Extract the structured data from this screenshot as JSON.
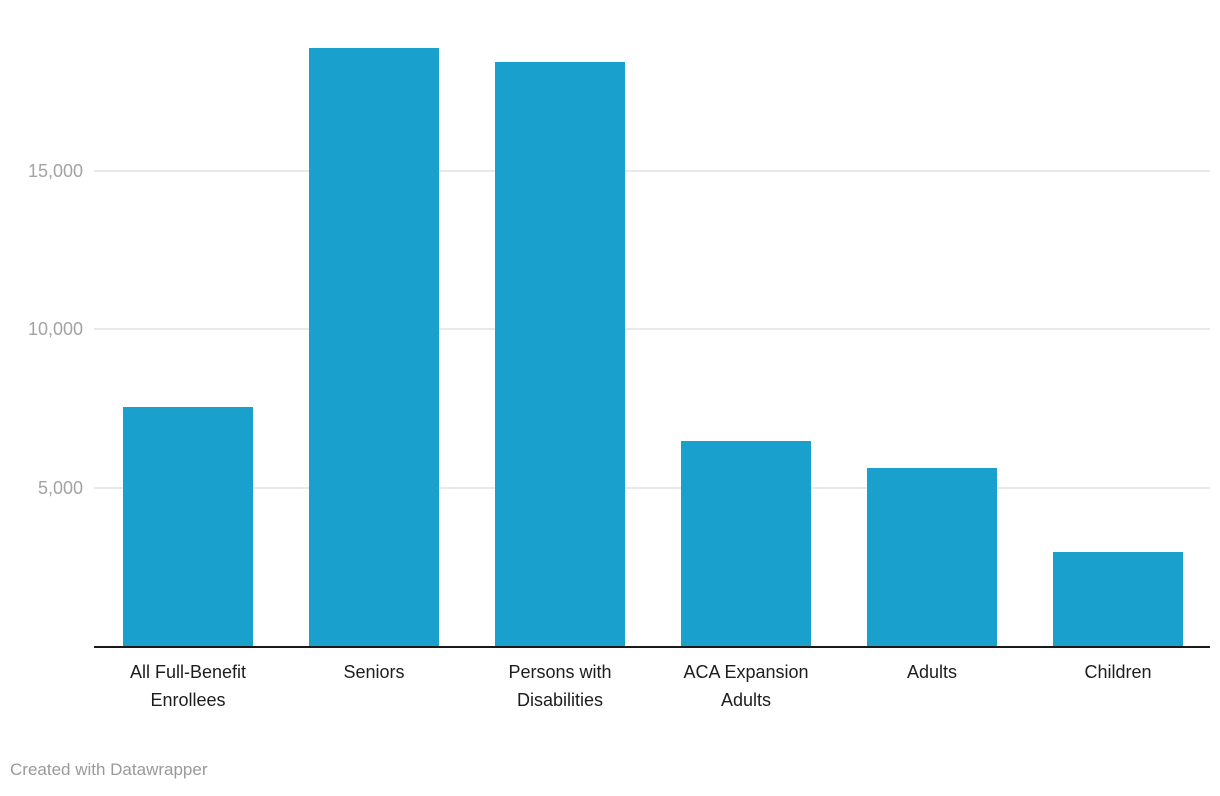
{
  "chart_data": {
    "type": "bar",
    "title": "",
    "xlabel": "",
    "ylabel": "",
    "categories": [
      "All Full-Benefit Enrollees",
      "Seniors",
      "Persons with Disabilities",
      "ACA Expansion Adults",
      "Adults",
      "Children"
    ],
    "values": [
      7560,
      18900,
      18460,
      6490,
      5610,
      2980
    ],
    "ylim": [
      0,
      20400
    ],
    "yticks": [
      {
        "value": 5000,
        "label": "5,000"
      },
      {
        "value": 10000,
        "label": "10,000"
      },
      {
        "value": 15000,
        "label": "15,000"
      }
    ],
    "grid": true,
    "legend": false,
    "bar_color": "#1aa0cd"
  },
  "colors": {
    "bar": "#1aa0cd",
    "gridline": "#e9e9e9",
    "axis_line": "#1a1a1a",
    "tick_label": "#a3a3a3",
    "category_label": "#1d1d1d",
    "attribution": "#9a9a9a",
    "background": "#ffffff"
  },
  "footer": {
    "attribution": "Created with Datawrapper"
  }
}
